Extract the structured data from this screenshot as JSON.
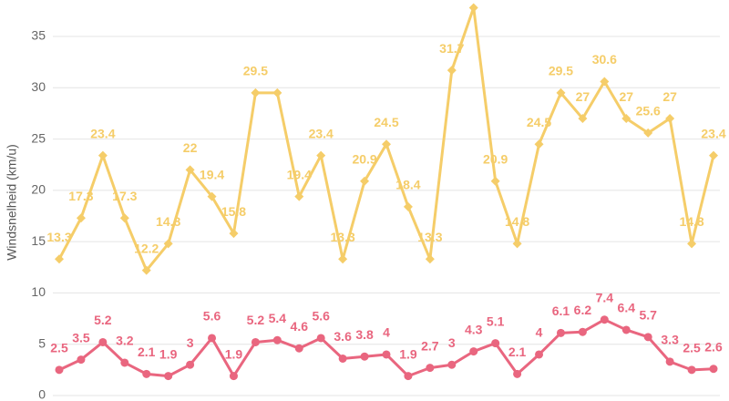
{
  "chart_data": {
    "type": "line",
    "y_label": "Windsnelheid (km/u)",
    "categories": [
      null,
      null,
      null,
      null,
      null,
      null,
      null,
      null,
      null,
      null,
      null,
      null,
      null,
      null,
      null,
      null,
      null,
      null,
      null,
      null,
      null,
      null,
      null,
      null,
      null,
      null,
      null,
      null,
      null,
      null,
      null
    ],
    "series": [
      {
        "color": "#f5cd69",
        "marker": "diamond",
        "values": [
          13.3,
          17.3,
          23.4,
          17.3,
          12.2,
          14.8,
          22,
          19.4,
          15.8,
          29.5,
          29.5,
          19.4,
          23.4,
          13.3,
          20.9,
          24.5,
          18.4,
          13.3,
          31.7,
          37.8,
          20.9,
          14.8,
          24.5,
          29.5,
          27,
          30.6,
          27,
          25.6,
          27,
          14.8,
          23.4
        ]
      },
      {
        "color": "#e9667f",
        "marker": "circle",
        "values": [
          2.5,
          3.5,
          5.2,
          3.2,
          2.1,
          1.9,
          3,
          5.6,
          1.9,
          5.2,
          5.4,
          4.6,
          5.6,
          3.6,
          3.8,
          4,
          1.9,
          2.7,
          3,
          4.3,
          5.1,
          2.1,
          4,
          6.1,
          6.2,
          7.4,
          6.4,
          5.7,
          3.3,
          2.5,
          2.6
        ]
      }
    ],
    "ylim": [
      0,
      38.5
    ],
    "yticks": [
      0,
      5,
      10,
      15,
      20,
      25,
      30,
      35
    ],
    "grid": true,
    "data_labels": true
  }
}
